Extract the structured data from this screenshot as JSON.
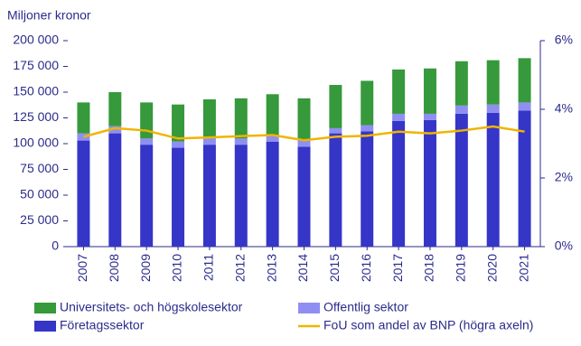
{
  "chart_data": {
    "type": "bar",
    "stacked": true,
    "y_label": "Miljoner kronor",
    "categories": [
      "2007",
      "2008",
      "2009",
      "2010",
      "2011",
      "2012",
      "2013",
      "2014",
      "2015",
      "2016",
      "2017",
      "2018",
      "2019",
      "2020",
      "2021"
    ],
    "series": [
      {
        "name": "Företagssektor",
        "color": "#3535c8",
        "values": [
          103000,
          110000,
          99000,
          96000,
          99000,
          99000,
          102000,
          97000,
          110000,
          112000,
          122000,
          123000,
          129000,
          130000,
          132000
        ]
      },
      {
        "name": "Offentlig sektor",
        "color": "#8f8ff2",
        "values": [
          7000,
          7000,
          6000,
          6000,
          6000,
          6000,
          6000,
          6000,
          5000,
          6000,
          7000,
          6000,
          8000,
          8000,
          8000
        ]
      },
      {
        "name": "Universitets- och högskolesektor",
        "color": "#36993b",
        "values": [
          30000,
          33000,
          35000,
          36000,
          38000,
          39000,
          40000,
          41000,
          42000,
          43000,
          43000,
          44000,
          43000,
          43000,
          43000
        ]
      },
      {
        "name": "FoU som andel av BNP (högra axeln)",
        "type": "line",
        "axis": "y2",
        "color": "#f0b400",
        "values": [
          3.2,
          3.45,
          3.38,
          3.15,
          3.18,
          3.22,
          3.25,
          3.1,
          3.2,
          3.23,
          3.35,
          3.3,
          3.38,
          3.5,
          3.35
        ]
      }
    ],
    "ylim": [
      0,
      200000
    ],
    "yticks": [
      {
        "value": 0,
        "label": "0"
      },
      {
        "value": 25000,
        "label": "25 000"
      },
      {
        "value": 50000,
        "label": "50 000"
      },
      {
        "value": 75000,
        "label": "75 000"
      },
      {
        "value": 100000,
        "label": "100 000"
      },
      {
        "value": 125000,
        "label": "125 000"
      },
      {
        "value": 150000,
        "label": "150 000"
      },
      {
        "value": 175000,
        "label": "175 000"
      },
      {
        "value": 200000,
        "label": "200 000"
      }
    ],
    "y2lim": [
      0,
      6
    ],
    "y2ticks": [
      {
        "value": 0,
        "label": "0%"
      },
      {
        "value": 2,
        "label": "2%"
      },
      {
        "value": 4,
        "label": "4%"
      },
      {
        "value": 6,
        "label": "6%"
      }
    ],
    "grid": false
  }
}
